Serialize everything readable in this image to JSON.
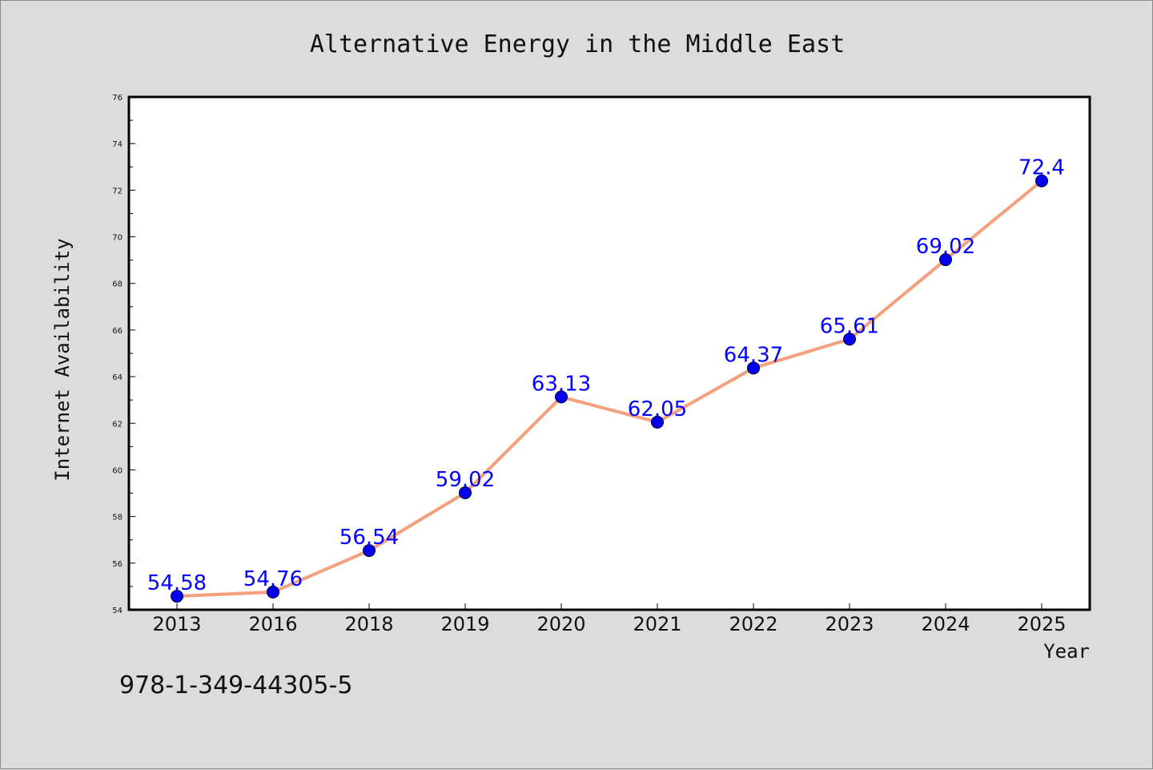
{
  "chart_data": {
    "type": "line",
    "title": "Alternative Energy in the Middle East",
    "xlabel": "Year",
    "ylabel": "Internet Availability",
    "categories": [
      "2013",
      "2016",
      "2018",
      "2019",
      "2020",
      "2021",
      "2022",
      "2023",
      "2024",
      "2025"
    ],
    "series": [
      {
        "values": [
          54.58,
          54.76,
          56.54,
          59.02,
          63.13,
          62.05,
          64.37,
          65.61,
          69.02,
          72.4
        ],
        "data_labels": [
          "54.58",
          "54.76",
          "56.54",
          "59.02",
          "63.13",
          "62.05",
          "64.37",
          "65.61",
          "69.02",
          "72.4"
        ],
        "line_color": "#f4a07c",
        "marker_color": "#0000ee"
      }
    ],
    "ylim": [
      54,
      76
    ],
    "yticks": [
      "54",
      "56",
      "58",
      "60",
      "62",
      "64",
      "66",
      "68",
      "70",
      "72",
      "74",
      "76"
    ],
    "grid": false,
    "label_color": "#0000ff"
  },
  "footer": {
    "isbn": "978-1-349-44305-5"
  }
}
